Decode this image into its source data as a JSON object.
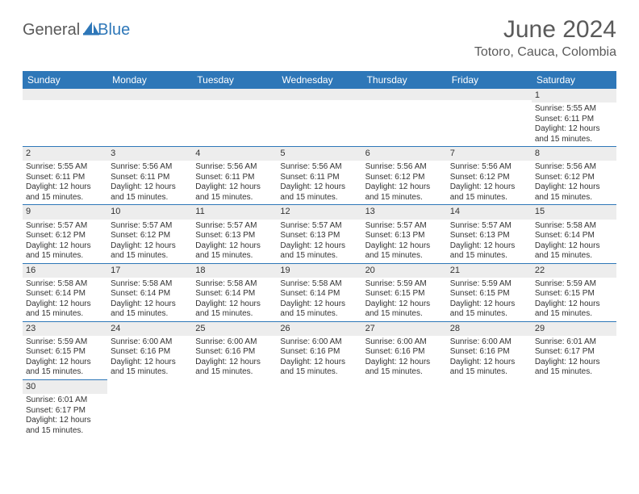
{
  "logo": {
    "part1": "General",
    "part2": "Blue"
  },
  "title": "June 2024",
  "location": "Totoro, Cauca, Colombia",
  "colors": {
    "header_bg": "#2e77b8",
    "header_text": "#ffffff",
    "daynum_bg": "#ededed",
    "border": "#2e77b8",
    "text": "#333333",
    "logo_gray": "#5a5a5a",
    "logo_blue": "#2e77b8"
  },
  "weekdays": [
    "Sunday",
    "Monday",
    "Tuesday",
    "Wednesday",
    "Thursday",
    "Friday",
    "Saturday"
  ],
  "sunrise_label": "Sunrise: ",
  "sunset_label": "Sunset: ",
  "daylight_label": "Daylight: ",
  "grid": [
    [
      null,
      null,
      null,
      null,
      null,
      null,
      {
        "n": "1",
        "sunrise": "5:55 AM",
        "sunset": "6:11 PM",
        "daylight": "12 hours and 15 minutes."
      }
    ],
    [
      {
        "n": "2",
        "sunrise": "5:55 AM",
        "sunset": "6:11 PM",
        "daylight": "12 hours and 15 minutes."
      },
      {
        "n": "3",
        "sunrise": "5:56 AM",
        "sunset": "6:11 PM",
        "daylight": "12 hours and 15 minutes."
      },
      {
        "n": "4",
        "sunrise": "5:56 AM",
        "sunset": "6:11 PM",
        "daylight": "12 hours and 15 minutes."
      },
      {
        "n": "5",
        "sunrise": "5:56 AM",
        "sunset": "6:11 PM",
        "daylight": "12 hours and 15 minutes."
      },
      {
        "n": "6",
        "sunrise": "5:56 AM",
        "sunset": "6:12 PM",
        "daylight": "12 hours and 15 minutes."
      },
      {
        "n": "7",
        "sunrise": "5:56 AM",
        "sunset": "6:12 PM",
        "daylight": "12 hours and 15 minutes."
      },
      {
        "n": "8",
        "sunrise": "5:56 AM",
        "sunset": "6:12 PM",
        "daylight": "12 hours and 15 minutes."
      }
    ],
    [
      {
        "n": "9",
        "sunrise": "5:57 AM",
        "sunset": "6:12 PM",
        "daylight": "12 hours and 15 minutes."
      },
      {
        "n": "10",
        "sunrise": "5:57 AM",
        "sunset": "6:12 PM",
        "daylight": "12 hours and 15 minutes."
      },
      {
        "n": "11",
        "sunrise": "5:57 AM",
        "sunset": "6:13 PM",
        "daylight": "12 hours and 15 minutes."
      },
      {
        "n": "12",
        "sunrise": "5:57 AM",
        "sunset": "6:13 PM",
        "daylight": "12 hours and 15 minutes."
      },
      {
        "n": "13",
        "sunrise": "5:57 AM",
        "sunset": "6:13 PM",
        "daylight": "12 hours and 15 minutes."
      },
      {
        "n": "14",
        "sunrise": "5:57 AM",
        "sunset": "6:13 PM",
        "daylight": "12 hours and 15 minutes."
      },
      {
        "n": "15",
        "sunrise": "5:58 AM",
        "sunset": "6:14 PM",
        "daylight": "12 hours and 15 minutes."
      }
    ],
    [
      {
        "n": "16",
        "sunrise": "5:58 AM",
        "sunset": "6:14 PM",
        "daylight": "12 hours and 15 minutes."
      },
      {
        "n": "17",
        "sunrise": "5:58 AM",
        "sunset": "6:14 PM",
        "daylight": "12 hours and 15 minutes."
      },
      {
        "n": "18",
        "sunrise": "5:58 AM",
        "sunset": "6:14 PM",
        "daylight": "12 hours and 15 minutes."
      },
      {
        "n": "19",
        "sunrise": "5:58 AM",
        "sunset": "6:14 PM",
        "daylight": "12 hours and 15 minutes."
      },
      {
        "n": "20",
        "sunrise": "5:59 AM",
        "sunset": "6:15 PM",
        "daylight": "12 hours and 15 minutes."
      },
      {
        "n": "21",
        "sunrise": "5:59 AM",
        "sunset": "6:15 PM",
        "daylight": "12 hours and 15 minutes."
      },
      {
        "n": "22",
        "sunrise": "5:59 AM",
        "sunset": "6:15 PM",
        "daylight": "12 hours and 15 minutes."
      }
    ],
    [
      {
        "n": "23",
        "sunrise": "5:59 AM",
        "sunset": "6:15 PM",
        "daylight": "12 hours and 15 minutes."
      },
      {
        "n": "24",
        "sunrise": "6:00 AM",
        "sunset": "6:16 PM",
        "daylight": "12 hours and 15 minutes."
      },
      {
        "n": "25",
        "sunrise": "6:00 AM",
        "sunset": "6:16 PM",
        "daylight": "12 hours and 15 minutes."
      },
      {
        "n": "26",
        "sunrise": "6:00 AM",
        "sunset": "6:16 PM",
        "daylight": "12 hours and 15 minutes."
      },
      {
        "n": "27",
        "sunrise": "6:00 AM",
        "sunset": "6:16 PM",
        "daylight": "12 hours and 15 minutes."
      },
      {
        "n": "28",
        "sunrise": "6:00 AM",
        "sunset": "6:16 PM",
        "daylight": "12 hours and 15 minutes."
      },
      {
        "n": "29",
        "sunrise": "6:01 AM",
        "sunset": "6:17 PM",
        "daylight": "12 hours and 15 minutes."
      }
    ],
    [
      {
        "n": "30",
        "sunrise": "6:01 AM",
        "sunset": "6:17 PM",
        "daylight": "12 hours and 15 minutes."
      },
      null,
      null,
      null,
      null,
      null,
      null
    ]
  ]
}
